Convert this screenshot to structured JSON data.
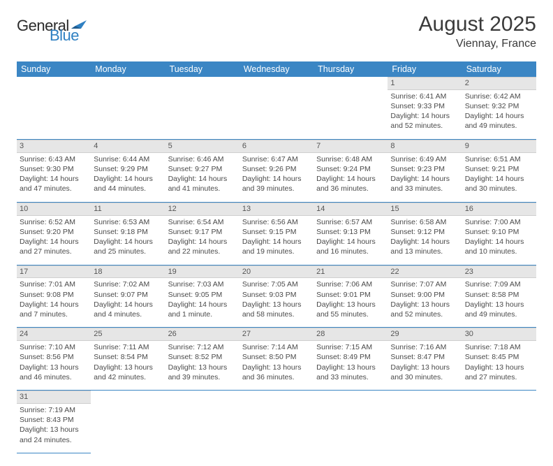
{
  "logo": {
    "text_main": "General",
    "text_blue": "Blue"
  },
  "header": {
    "title": "August 2025",
    "subtitle": "Viennay, France"
  },
  "colors": {
    "header_bg": "#3b86c4",
    "header_text": "#ffffff",
    "daynum_bg": "#e6e6e6",
    "cell_border": "#3b86c4",
    "body_text": "#4a4a4a"
  },
  "day_headers": [
    "Sunday",
    "Monday",
    "Tuesday",
    "Wednesday",
    "Thursday",
    "Friday",
    "Saturday"
  ],
  "weeks": [
    [
      {
        "empty": true
      },
      {
        "empty": true
      },
      {
        "empty": true
      },
      {
        "empty": true
      },
      {
        "empty": true
      },
      {
        "day": "1",
        "sunrise": "Sunrise: 6:41 AM",
        "sunset": "Sunset: 9:33 PM",
        "daylight1": "Daylight: 14 hours",
        "daylight2": "and 52 minutes."
      },
      {
        "day": "2",
        "sunrise": "Sunrise: 6:42 AM",
        "sunset": "Sunset: 9:32 PM",
        "daylight1": "Daylight: 14 hours",
        "daylight2": "and 49 minutes."
      }
    ],
    [
      {
        "day": "3",
        "sunrise": "Sunrise: 6:43 AM",
        "sunset": "Sunset: 9:30 PM",
        "daylight1": "Daylight: 14 hours",
        "daylight2": "and 47 minutes."
      },
      {
        "day": "4",
        "sunrise": "Sunrise: 6:44 AM",
        "sunset": "Sunset: 9:29 PM",
        "daylight1": "Daylight: 14 hours",
        "daylight2": "and 44 minutes."
      },
      {
        "day": "5",
        "sunrise": "Sunrise: 6:46 AM",
        "sunset": "Sunset: 9:27 PM",
        "daylight1": "Daylight: 14 hours",
        "daylight2": "and 41 minutes."
      },
      {
        "day": "6",
        "sunrise": "Sunrise: 6:47 AM",
        "sunset": "Sunset: 9:26 PM",
        "daylight1": "Daylight: 14 hours",
        "daylight2": "and 39 minutes."
      },
      {
        "day": "7",
        "sunrise": "Sunrise: 6:48 AM",
        "sunset": "Sunset: 9:24 PM",
        "daylight1": "Daylight: 14 hours",
        "daylight2": "and 36 minutes."
      },
      {
        "day": "8",
        "sunrise": "Sunrise: 6:49 AM",
        "sunset": "Sunset: 9:23 PM",
        "daylight1": "Daylight: 14 hours",
        "daylight2": "and 33 minutes."
      },
      {
        "day": "9",
        "sunrise": "Sunrise: 6:51 AM",
        "sunset": "Sunset: 9:21 PM",
        "daylight1": "Daylight: 14 hours",
        "daylight2": "and 30 minutes."
      }
    ],
    [
      {
        "day": "10",
        "sunrise": "Sunrise: 6:52 AM",
        "sunset": "Sunset: 9:20 PM",
        "daylight1": "Daylight: 14 hours",
        "daylight2": "and 27 minutes."
      },
      {
        "day": "11",
        "sunrise": "Sunrise: 6:53 AM",
        "sunset": "Sunset: 9:18 PM",
        "daylight1": "Daylight: 14 hours",
        "daylight2": "and 25 minutes."
      },
      {
        "day": "12",
        "sunrise": "Sunrise: 6:54 AM",
        "sunset": "Sunset: 9:17 PM",
        "daylight1": "Daylight: 14 hours",
        "daylight2": "and 22 minutes."
      },
      {
        "day": "13",
        "sunrise": "Sunrise: 6:56 AM",
        "sunset": "Sunset: 9:15 PM",
        "daylight1": "Daylight: 14 hours",
        "daylight2": "and 19 minutes."
      },
      {
        "day": "14",
        "sunrise": "Sunrise: 6:57 AM",
        "sunset": "Sunset: 9:13 PM",
        "daylight1": "Daylight: 14 hours",
        "daylight2": "and 16 minutes."
      },
      {
        "day": "15",
        "sunrise": "Sunrise: 6:58 AM",
        "sunset": "Sunset: 9:12 PM",
        "daylight1": "Daylight: 14 hours",
        "daylight2": "and 13 minutes."
      },
      {
        "day": "16",
        "sunrise": "Sunrise: 7:00 AM",
        "sunset": "Sunset: 9:10 PM",
        "daylight1": "Daylight: 14 hours",
        "daylight2": "and 10 minutes."
      }
    ],
    [
      {
        "day": "17",
        "sunrise": "Sunrise: 7:01 AM",
        "sunset": "Sunset: 9:08 PM",
        "daylight1": "Daylight: 14 hours",
        "daylight2": "and 7 minutes."
      },
      {
        "day": "18",
        "sunrise": "Sunrise: 7:02 AM",
        "sunset": "Sunset: 9:07 PM",
        "daylight1": "Daylight: 14 hours",
        "daylight2": "and 4 minutes."
      },
      {
        "day": "19",
        "sunrise": "Sunrise: 7:03 AM",
        "sunset": "Sunset: 9:05 PM",
        "daylight1": "Daylight: 14 hours",
        "daylight2": "and 1 minute."
      },
      {
        "day": "20",
        "sunrise": "Sunrise: 7:05 AM",
        "sunset": "Sunset: 9:03 PM",
        "daylight1": "Daylight: 13 hours",
        "daylight2": "and 58 minutes."
      },
      {
        "day": "21",
        "sunrise": "Sunrise: 7:06 AM",
        "sunset": "Sunset: 9:01 PM",
        "daylight1": "Daylight: 13 hours",
        "daylight2": "and 55 minutes."
      },
      {
        "day": "22",
        "sunrise": "Sunrise: 7:07 AM",
        "sunset": "Sunset: 9:00 PM",
        "daylight1": "Daylight: 13 hours",
        "daylight2": "and 52 minutes."
      },
      {
        "day": "23",
        "sunrise": "Sunrise: 7:09 AM",
        "sunset": "Sunset: 8:58 PM",
        "daylight1": "Daylight: 13 hours",
        "daylight2": "and 49 minutes."
      }
    ],
    [
      {
        "day": "24",
        "sunrise": "Sunrise: 7:10 AM",
        "sunset": "Sunset: 8:56 PM",
        "daylight1": "Daylight: 13 hours",
        "daylight2": "and 46 minutes."
      },
      {
        "day": "25",
        "sunrise": "Sunrise: 7:11 AM",
        "sunset": "Sunset: 8:54 PM",
        "daylight1": "Daylight: 13 hours",
        "daylight2": "and 42 minutes."
      },
      {
        "day": "26",
        "sunrise": "Sunrise: 7:12 AM",
        "sunset": "Sunset: 8:52 PM",
        "daylight1": "Daylight: 13 hours",
        "daylight2": "and 39 minutes."
      },
      {
        "day": "27",
        "sunrise": "Sunrise: 7:14 AM",
        "sunset": "Sunset: 8:50 PM",
        "daylight1": "Daylight: 13 hours",
        "daylight2": "and 36 minutes."
      },
      {
        "day": "28",
        "sunrise": "Sunrise: 7:15 AM",
        "sunset": "Sunset: 8:49 PM",
        "daylight1": "Daylight: 13 hours",
        "daylight2": "and 33 minutes."
      },
      {
        "day": "29",
        "sunrise": "Sunrise: 7:16 AM",
        "sunset": "Sunset: 8:47 PM",
        "daylight1": "Daylight: 13 hours",
        "daylight2": "and 30 minutes."
      },
      {
        "day": "30",
        "sunrise": "Sunrise: 7:18 AM",
        "sunset": "Sunset: 8:45 PM",
        "daylight1": "Daylight: 13 hours",
        "daylight2": "and 27 minutes."
      }
    ],
    [
      {
        "day": "31",
        "sunrise": "Sunrise: 7:19 AM",
        "sunset": "Sunset: 8:43 PM",
        "daylight1": "Daylight: 13 hours",
        "daylight2": "and 24 minutes."
      },
      {
        "empty": true
      },
      {
        "empty": true
      },
      {
        "empty": true
      },
      {
        "empty": true
      },
      {
        "empty": true
      },
      {
        "empty": true
      }
    ]
  ]
}
